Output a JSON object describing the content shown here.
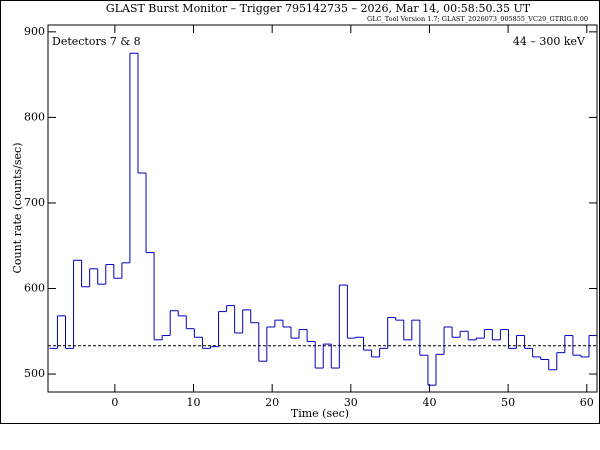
{
  "chart_data": {
    "type": "histogram",
    "title": "GLAST Burst Monitor  –  Trigger 795142735  –  2026, Mar 14, 00:58:50.35 UT",
    "subtitle": "GLC_Tool Version 1.7; GLAST_2026073_005855_VC29_GTRIG.0.00",
    "annotations": [
      "Detectors 7 & 8",
      "44 – 300 keV"
    ],
    "x_label": "Time (sec)",
    "y_label": "Count rate (counts/sec)",
    "color": "#0000c0",
    "bins": [
      -8.324,
      -7.3,
      -6.276,
      -5.252,
      -4.228,
      -3.204,
      -2.18,
      -1.156,
      -0.132,
      0.892,
      1.916,
      2.94,
      3.964,
      4.988,
      6.012,
      7.036,
      8.06,
      9.084,
      10.108,
      11.132,
      12.156,
      13.18,
      14.204,
      15.228,
      16.252,
      17.276,
      18.3,
      19.324,
      20.348,
      21.372,
      22.396,
      23.42,
      24.444,
      25.468,
      26.492,
      27.516,
      28.54,
      29.564,
      30.588,
      31.612,
      32.636,
      33.66,
      34.684,
      35.708,
      36.732,
      37.756,
      38.78,
      39.804,
      40.828,
      41.852,
      42.876,
      43.9,
      44.924,
      45.948,
      46.972,
      47.996,
      49.02,
      50.044,
      51.068,
      52.092,
      53.116,
      54.14,
      55.164,
      56.188,
      57.212,
      58.236,
      59.26,
      60.284,
      61.308
    ],
    "counts": [
      530,
      568,
      530,
      633,
      602,
      623,
      605,
      628,
      612,
      630,
      875,
      735,
      642,
      540,
      545,
      574,
      568,
      553,
      543,
      530,
      532,
      573,
      580,
      548,
      575,
      560,
      515,
      555,
      563,
      555,
      542,
      552,
      538,
      507,
      535,
      507,
      604,
      542,
      543,
      528,
      520,
      530,
      566,
      563,
      540,
      563,
      522,
      487,
      523,
      555,
      543,
      550,
      540,
      542,
      552,
      540,
      552,
      530,
      545,
      530,
      520,
      517,
      505,
      525,
      545,
      522,
      520,
      545
    ],
    "background": 533,
    "xlim": [
      -8.5,
      61.3
    ],
    "xticks": [
      0,
      10,
      20,
      30,
      40,
      50,
      60
    ],
    "ylim": [
      479,
      908
    ],
    "yticks": [
      500,
      600,
      700,
      800,
      900
    ]
  }
}
